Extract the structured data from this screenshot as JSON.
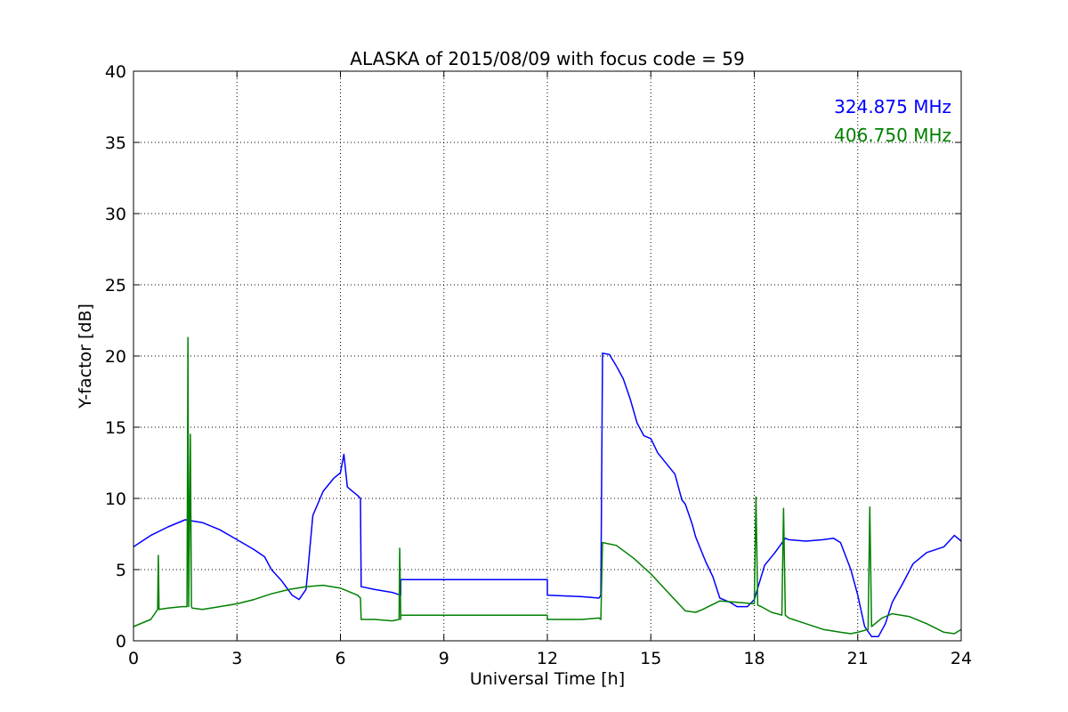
{
  "chart_data": {
    "type": "line",
    "title": "ALASKA of 2015/08/09 with focus code = 59",
    "xlabel": "Universal Time [h]",
    "ylabel": "Y-factor [dB]",
    "xlim": [
      0,
      24
    ],
    "ylim": [
      0,
      40
    ],
    "xticks": [
      0,
      3,
      6,
      9,
      12,
      15,
      18,
      21,
      24
    ],
    "yticks": [
      0,
      5,
      10,
      15,
      20,
      25,
      30,
      35,
      40
    ],
    "grid": true,
    "legend_position": "top-right",
    "series": [
      {
        "name": "324.875 MHz",
        "color": "#0000ff",
        "x": [
          0,
          0.5,
          1.0,
          1.5,
          2.0,
          2.5,
          3.0,
          3.5,
          3.8,
          4.0,
          4.3,
          4.6,
          4.8,
          5.0,
          5.05,
          5.2,
          5.5,
          5.8,
          6.0,
          6.1,
          6.2,
          6.3,
          6.5,
          6.58,
          6.6,
          7.0,
          7.5,
          7.75,
          7.75,
          12.0,
          12.0,
          13.0,
          13.5,
          13.55,
          13.6,
          13.8,
          14.0,
          14.2,
          14.4,
          14.6,
          14.8,
          15.0,
          15.2,
          15.5,
          15.7,
          15.9,
          16.0,
          16.2,
          16.3,
          16.5,
          16.6,
          16.8,
          17.0,
          17.3,
          17.5,
          17.8,
          18.0,
          18.3,
          18.6,
          18.9,
          19.0,
          19.5,
          20.0,
          20.3,
          20.5,
          20.8,
          21.0,
          21.2,
          21.4,
          21.6,
          21.8,
          22.0,
          22.3,
          22.6,
          23.0,
          23.5,
          23.8,
          24.0
        ],
        "y": [
          6.6,
          7.4,
          8.0,
          8.5,
          8.3,
          7.8,
          7.1,
          6.4,
          5.9,
          5.0,
          4.2,
          3.2,
          2.9,
          3.6,
          4.8,
          8.8,
          10.5,
          11.4,
          11.8,
          13.1,
          10.8,
          10.6,
          10.2,
          10.0,
          3.8,
          3.6,
          3.4,
          3.2,
          4.3,
          4.3,
          3.2,
          3.1,
          3.0,
          3.2,
          20.2,
          20.1,
          19.3,
          18.4,
          17.0,
          15.3,
          14.4,
          14.2,
          13.2,
          12.3,
          11.7,
          9.9,
          9.6,
          8.2,
          7.3,
          6.1,
          5.5,
          4.5,
          3.0,
          2.7,
          2.4,
          2.4,
          2.9,
          5.3,
          6.2,
          7.2,
          7.1,
          7.0,
          7.1,
          7.2,
          6.9,
          5.0,
          3.2,
          1.0,
          0.3,
          0.3,
          1.2,
          2.7,
          4.0,
          5.4,
          6.2,
          6.6,
          7.4,
          7.0
        ]
      },
      {
        "name": "406.750 MHz",
        "color": "#008000",
        "x": [
          0,
          0.5,
          0.7,
          0.72,
          0.74,
          1.0,
          1.4,
          1.55,
          1.58,
          1.6,
          1.65,
          1.68,
          1.7,
          2.0,
          2.5,
          3.0,
          3.5,
          4.0,
          4.5,
          5.0,
          5.5,
          6.0,
          6.5,
          6.58,
          6.6,
          7.0,
          7.5,
          7.7,
          7.72,
          7.75,
          7.75,
          12.0,
          12.0,
          13.0,
          13.5,
          13.55,
          13.6,
          14.0,
          14.5,
          15.0,
          15.5,
          16.0,
          16.3,
          16.5,
          17.0,
          17.5,
          18.0,
          18.05,
          18.1,
          18.2,
          18.5,
          18.8,
          18.85,
          18.9,
          19.0,
          19.5,
          20.0,
          20.5,
          20.8,
          21.0,
          21.3,
          21.35,
          21.4,
          21.7,
          22.0,
          22.5,
          23.0,
          23.5,
          23.8,
          24.0
        ],
        "y": [
          1.0,
          1.5,
          2.2,
          6.0,
          2.2,
          2.3,
          2.4,
          2.4,
          21.3,
          2.4,
          14.5,
          2.4,
          2.3,
          2.2,
          2.4,
          2.6,
          2.9,
          3.3,
          3.6,
          3.8,
          3.9,
          3.7,
          3.2,
          3.0,
          1.5,
          1.5,
          1.4,
          1.5,
          6.5,
          1.5,
          1.8,
          1.8,
          1.5,
          1.5,
          1.6,
          1.5,
          6.9,
          6.7,
          5.8,
          4.7,
          3.4,
          2.1,
          2.0,
          2.2,
          2.8,
          2.7,
          2.6,
          10.1,
          2.5,
          2.4,
          2.0,
          1.8,
          9.3,
          1.8,
          1.6,
          1.2,
          0.8,
          0.6,
          0.5,
          0.6,
          0.8,
          9.4,
          1.0,
          1.6,
          1.9,
          1.7,
          1.2,
          0.6,
          0.5,
          0.8
        ]
      }
    ]
  }
}
